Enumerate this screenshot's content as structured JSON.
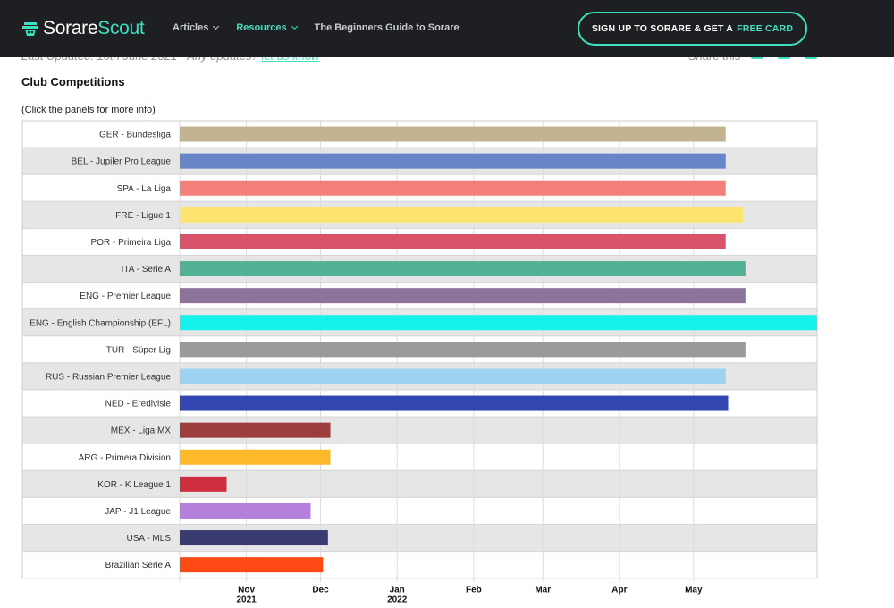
{
  "header": {
    "logo_part1": "Sorare",
    "logo_part2": "Scout",
    "nav": [
      {
        "label": "Articles",
        "active": false,
        "dropdown": true
      },
      {
        "label": "Resources",
        "active": true,
        "dropdown": true
      },
      {
        "label": "The Beginners Guide to Sorare",
        "active": false,
        "dropdown": false
      }
    ],
    "cta_label": "SIGN UP TO SORARE & GET A",
    "cta_highlight": "FREE CARD"
  },
  "page": {
    "updated_text": "Last Updated: 10th June 2021 - Any updates?",
    "updated_link": "let us know",
    "share_label": "Share this",
    "section_title": "Club Competitions",
    "hint": "(Click the panels for more info)"
  },
  "colors": {
    "accent": "#3ee0c2",
    "header_bg": "#1e1f22"
  },
  "chart_data": {
    "type": "gantt",
    "x_axis": {
      "type": "date",
      "range": [
        "2021-10-05",
        "2022-06-20"
      ],
      "ticks": [
        {
          "date": "2021-11-01",
          "label": "Nov",
          "sublabel": "2021"
        },
        {
          "date": "2021-12-01",
          "label": "Dec",
          "sublabel": ""
        },
        {
          "date": "2022-01-01",
          "label": "Jan",
          "sublabel": "2022"
        },
        {
          "date": "2022-02-01",
          "label": "Feb",
          "sublabel": ""
        },
        {
          "date": "2022-03-01",
          "label": "Mar",
          "sublabel": ""
        },
        {
          "date": "2022-04-01",
          "label": "Apr",
          "sublabel": ""
        },
        {
          "date": "2022-05-01",
          "label": "May",
          "sublabel": ""
        }
      ]
    },
    "grid": true,
    "rows": [
      {
        "name": "GER - Bundesliga",
        "start": "2021-10-05",
        "end": "2022-05-14",
        "color": "#c2b490"
      },
      {
        "name": "BEL - Jupiler Pro League",
        "start": "2021-10-05",
        "end": "2022-05-14",
        "color": "#6785c8"
      },
      {
        "name": "SPA - La Liga",
        "start": "2021-10-05",
        "end": "2022-05-14",
        "color": "#f27f7a"
      },
      {
        "name": "FRE - Ligue 1",
        "start": "2021-10-05",
        "end": "2022-05-21",
        "color": "#fde36f"
      },
      {
        "name": "POR - Primeira Liga",
        "start": "2021-10-05",
        "end": "2022-05-14",
        "color": "#d9546b"
      },
      {
        "name": "ITA - Serie A",
        "start": "2021-10-05",
        "end": "2022-05-22",
        "color": "#53b295"
      },
      {
        "name": "ENG - Premier League",
        "start": "2021-10-05",
        "end": "2022-05-22",
        "color": "#8b7399"
      },
      {
        "name": "ENG - English Championship (EFL)",
        "start": "2021-10-05",
        "end": "2022-06-20",
        "color": "#17f1ec"
      },
      {
        "name": "TUR - Süper Lig",
        "start": "2021-10-05",
        "end": "2022-05-22",
        "color": "#9a9a9a"
      },
      {
        "name": "RUS - Russian Premier League",
        "start": "2021-10-05",
        "end": "2022-05-14",
        "color": "#9dd3f0"
      },
      {
        "name": "NED - Eredivisie",
        "start": "2021-10-05",
        "end": "2022-05-15",
        "color": "#3347b2"
      },
      {
        "name": "MEX - Liga MX",
        "start": "2021-10-05",
        "end": "2021-12-05",
        "color": "#9e3d3d"
      },
      {
        "name": "ARG - Primera Division",
        "start": "2021-10-05",
        "end": "2021-12-05",
        "color": "#fdb92b"
      },
      {
        "name": "KOR - K League 1",
        "start": "2021-10-05",
        "end": "2021-10-24",
        "color": "#cf2e3e"
      },
      {
        "name": "JAP - J1 League",
        "start": "2021-10-05",
        "end": "2021-11-27",
        "color": "#b57fdc"
      },
      {
        "name": "USA - MLS",
        "start": "2021-10-05",
        "end": "2021-12-04",
        "color": "#3a3b6e"
      },
      {
        "name": "Brazilian Serie A",
        "start": "2021-10-05",
        "end": "2021-12-02",
        "color": "#fe4a14"
      }
    ]
  }
}
